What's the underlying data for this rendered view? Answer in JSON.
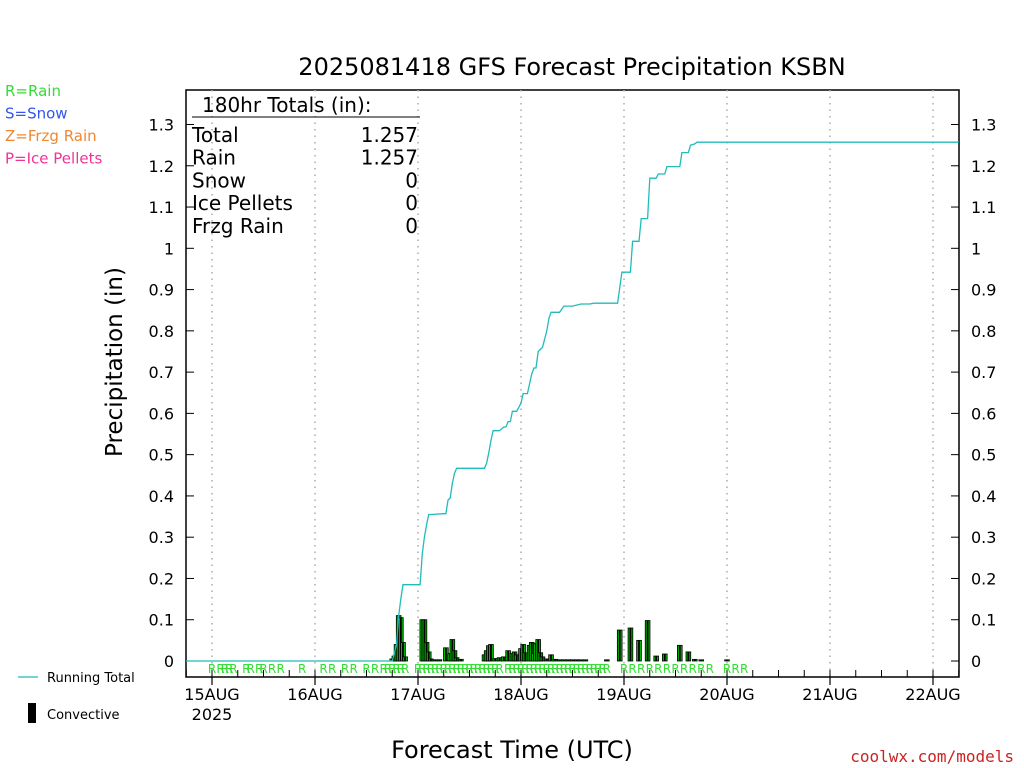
{
  "chart_data": {
    "type": "line",
    "title": "2025081418 GFS Forecast Precipitation KSBN",
    "xlabel": "Forecast Time (UTC)",
    "ylabel": "Precipitation (in)",
    "xlim_hours": [
      -6,
      180
    ],
    "ylim": [
      0,
      1.37
    ],
    "grid": "vertical dotted at each day",
    "y_ticks": [
      "0",
      "0.1",
      "0.2",
      "0.3",
      "0.4",
      "0.5",
      "0.6",
      "0.7",
      "0.8",
      "0.9",
      "1",
      "1.1",
      "1.2",
      "1.3"
    ],
    "y_tick_values": [
      0,
      0.1,
      0.2,
      0.3,
      0.4,
      0.5,
      0.6,
      0.7,
      0.8,
      0.9,
      1,
      1.1,
      1.2,
      1.3
    ],
    "x_ticks": [
      {
        "label": "15AUG",
        "sub": "2025",
        "hour": 6
      },
      {
        "label": "16AUG",
        "hour": 30
      },
      {
        "label": "17AUG",
        "hour": 54
      },
      {
        "label": "18AUG",
        "hour": 78
      },
      {
        "label": "19AUG",
        "hour": 102
      },
      {
        "label": "20AUG",
        "hour": 126
      },
      {
        "label": "21AUG",
        "hour": 150
      },
      {
        "label": "22AUG",
        "hour": 174
      }
    ],
    "totals_box": {
      "heading": "180hr Totals (in):",
      "rows": [
        {
          "label": "Total",
          "value": "1.257"
        },
        {
          "label": "Rain",
          "value": "1.257"
        },
        {
          "label": "Snow",
          "value": "0"
        },
        {
          "label": "Ice Pellets",
          "value": "0"
        },
        {
          "label": "Frzg Rain",
          "value": "0"
        }
      ]
    },
    "legend_top": [
      {
        "label": "R=Rain",
        "color": "#33dd33"
      },
      {
        "label": "S=Snow",
        "color": "#3355ee"
      },
      {
        "label": "Z=Frzg Rain",
        "color": "#ee8833"
      },
      {
        "label": "P=Ice Pellets",
        "color": "#ee3399"
      }
    ],
    "legend_bottom": [
      {
        "label": "Running Total",
        "color": "#22bbbb"
      },
      {
        "label": "Convective",
        "color": "#000000"
      }
    ],
    "series": [
      {
        "name": "Running Total",
        "color": "#22bbbb",
        "points": [
          [
            -6,
            0
          ],
          [
            48,
            0
          ],
          [
            49,
            0.04
          ],
          [
            49.5,
            0.11
          ],
          [
            50,
            0.15
          ],
          [
            50.5,
            0.185
          ],
          [
            51,
            0.185
          ],
          [
            54,
            0.185
          ],
          [
            54.5,
            0.185
          ],
          [
            55,
            0.26
          ],
          [
            55.5,
            0.3
          ],
          [
            56,
            0.33
          ],
          [
            56.5,
            0.355
          ],
          [
            57,
            0.355
          ],
          [
            60,
            0.357
          ],
          [
            60.5,
            0.357
          ],
          [
            61,
            0.39
          ],
          [
            61.5,
            0.395
          ],
          [
            62,
            0.43
          ],
          [
            62.5,
            0.455
          ],
          [
            63,
            0.467
          ],
          [
            68,
            0.467
          ],
          [
            69.5,
            0.467
          ],
          [
            70,
            0.48
          ],
          [
            70.5,
            0.505
          ],
          [
            71,
            0.535
          ],
          [
            71.5,
            0.558
          ],
          [
            73,
            0.558
          ],
          [
            74,
            0.567
          ],
          [
            74.5,
            0.567
          ],
          [
            75,
            0.58
          ],
          [
            75.5,
            0.58
          ],
          [
            76,
            0.605
          ],
          [
            77,
            0.605
          ],
          [
            78,
            0.625
          ],
          [
            78.5,
            0.648
          ],
          [
            79.5,
            0.648
          ],
          [
            80.5,
            0.695
          ],
          [
            81,
            0.71
          ],
          [
            81.5,
            0.71
          ],
          [
            82,
            0.75
          ],
          [
            83,
            0.76
          ],
          [
            84,
            0.8
          ],
          [
            84.5,
            0.83
          ],
          [
            85,
            0.845
          ],
          [
            87,
            0.845
          ],
          [
            88,
            0.86
          ],
          [
            90,
            0.86
          ],
          [
            92,
            0.865
          ],
          [
            94,
            0.865
          ],
          [
            95,
            0.867
          ],
          [
            100.5,
            0.867
          ],
          [
            101.5,
            0.942
          ],
          [
            103.5,
            0.942
          ],
          [
            104,
            1.017
          ],
          [
            105.5,
            1.017
          ],
          [
            106,
            1.072
          ],
          [
            107.5,
            1.072
          ],
          [
            108,
            1.17
          ],
          [
            109.5,
            1.17
          ],
          [
            110,
            1.18
          ],
          [
            111.5,
            1.18
          ],
          [
            112,
            1.198
          ],
          [
            115,
            1.198
          ],
          [
            115.5,
            1.232
          ],
          [
            117,
            1.232
          ],
          [
            117.5,
            1.25
          ],
          [
            118.5,
            1.253
          ],
          [
            119,
            1.257
          ],
          [
            180,
            1.257
          ]
        ]
      },
      {
        "name": "Convective",
        "type": "bar",
        "color": "#000000",
        "fill": "#00bb00",
        "width_hours": 0.5,
        "bars": [
          [
            48,
            0.005
          ],
          [
            48.5,
            0.012
          ],
          [
            49,
            0.04
          ],
          [
            49.5,
            0.11
          ],
          [
            50,
            0.105
          ],
          [
            50.5,
            0.045
          ],
          [
            51,
            0.01
          ],
          [
            55,
            0.1
          ],
          [
            55.5,
            0.1
          ],
          [
            56,
            0.045
          ],
          [
            56.5,
            0.022
          ],
          [
            57,
            0.005
          ],
          [
            58,
            0.003
          ],
          [
            59,
            0.003
          ],
          [
            60.5,
            0.032
          ],
          [
            61.5,
            0.018
          ],
          [
            62,
            0.052
          ],
          [
            62.5,
            0.025
          ],
          [
            63,
            0.008
          ],
          [
            64,
            0.004
          ],
          [
            69.5,
            0.015
          ],
          [
            70,
            0.025
          ],
          [
            70.5,
            0.037
          ],
          [
            71,
            0.04
          ],
          [
            72,
            0.006
          ],
          [
            73,
            0.008
          ],
          [
            74,
            0.01
          ],
          [
            75,
            0.025
          ],
          [
            76,
            0.018
          ],
          [
            76.5,
            0.022
          ],
          [
            77,
            0.015
          ],
          [
            78,
            0.03
          ],
          [
            78.5,
            0.04
          ],
          [
            79,
            0.02
          ],
          [
            80,
            0.038
          ],
          [
            80.5,
            0.045
          ],
          [
            81,
            0.018
          ],
          [
            81.5,
            0.042
          ],
          [
            82,
            0.052
          ],
          [
            82.5,
            0.02
          ],
          [
            83,
            0.01
          ],
          [
            84,
            0.005
          ],
          [
            85,
            0.015
          ],
          [
            86,
            0.004
          ],
          [
            87,
            0.003
          ],
          [
            88,
            0.003
          ],
          [
            89,
            0.003
          ],
          [
            90,
            0.003
          ],
          [
            91,
            0.003
          ],
          [
            92,
            0.002
          ],
          [
            93,
            0.002
          ],
          [
            98,
            0.002
          ],
          [
            101,
            0.075
          ],
          [
            103.5,
            0.08
          ],
          [
            105.5,
            0.05
          ],
          [
            107.5,
            0.098
          ],
          [
            109.5,
            0.012
          ],
          [
            111.5,
            0.017
          ],
          [
            115,
            0.038
          ],
          [
            117,
            0.022
          ],
          [
            118.5,
            0.004
          ],
          [
            120,
            0.002
          ],
          [
            126,
            0.002
          ]
        ]
      }
    ],
    "ptype_labels": {
      "color": "#33dd33",
      "letter": "R",
      "hours": [
        [
          -6,
          0
        ],
        [
          6,
          1
        ],
        [
          8,
          1
        ],
        [
          9,
          1
        ],
        [
          10,
          1
        ],
        [
          11,
          1
        ],
        [
          14,
          1
        ],
        [
          15,
          1
        ],
        [
          17,
          1
        ],
        [
          18,
          1
        ],
        [
          20,
          1
        ],
        [
          22,
          1
        ],
        [
          27,
          1
        ],
        [
          32,
          1
        ],
        [
          34,
          1
        ],
        [
          37,
          1
        ],
        [
          39,
          1
        ],
        [
          42,
          1
        ],
        [
          44,
          1
        ],
        [
          46,
          1
        ],
        [
          47,
          1
        ],
        [
          48,
          1
        ],
        [
          49,
          1
        ],
        [
          50,
          1
        ],
        [
          51,
          1
        ],
        [
          54,
          1
        ],
        [
          55,
          1
        ],
        [
          56,
          1
        ],
        [
          57,
          1
        ],
        [
          58,
          1
        ],
        [
          59,
          1
        ],
        [
          60,
          1
        ],
        [
          61,
          1
        ],
        [
          62,
          1
        ],
        [
          63,
          1
        ],
        [
          64,
          1
        ],
        [
          65,
          1
        ],
        [
          66,
          1
        ],
        [
          67,
          1
        ],
        [
          68,
          1
        ],
        [
          69,
          1
        ],
        [
          70,
          1
        ],
        [
          71,
          1
        ],
        [
          72,
          1
        ],
        [
          73,
          1
        ],
        [
          75,
          1
        ],
        [
          76,
          1
        ],
        [
          77,
          1
        ],
        [
          78,
          1
        ],
        [
          79,
          1
        ],
        [
          80,
          1
        ],
        [
          81,
          1
        ],
        [
          82,
          1
        ],
        [
          83,
          1
        ],
        [
          84,
          1
        ],
        [
          85,
          1
        ],
        [
          86,
          1
        ],
        [
          87,
          1
        ],
        [
          88,
          1
        ],
        [
          89,
          1
        ],
        [
          90,
          1
        ],
        [
          91,
          1
        ],
        [
          92,
          1
        ],
        [
          93,
          1
        ],
        [
          94,
          1
        ],
        [
          95,
          1
        ],
        [
          96,
          1
        ],
        [
          97,
          1
        ],
        [
          98,
          1
        ],
        [
          102,
          1
        ],
        [
          104,
          1
        ],
        [
          106,
          1
        ],
        [
          108,
          1
        ],
        [
          110,
          1
        ],
        [
          112,
          1
        ],
        [
          114,
          1
        ],
        [
          116,
          1
        ],
        [
          118,
          1
        ],
        [
          120,
          1
        ],
        [
          122,
          1
        ],
        [
          126,
          1
        ],
        [
          128,
          1
        ],
        [
          130,
          1
        ]
      ]
    },
    "credit": "coolwx.com/models"
  }
}
